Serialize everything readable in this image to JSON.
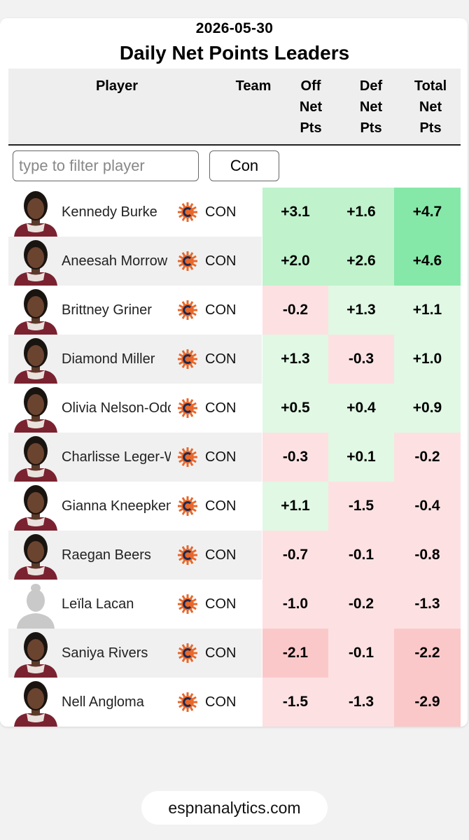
{
  "header": {
    "date": "2026-05-30",
    "title": "Daily Net Points Leaders"
  },
  "columns": {
    "player": "Player",
    "team": "Team",
    "off": "Off\nNet\nPts",
    "def": "Def\nNet\nPts",
    "total": "Total\nNet\nPts"
  },
  "filter": {
    "placeholder": "type to filter player",
    "team_value": "Con"
  },
  "colors": {
    "row_alt": "#f0f0f0",
    "green_light": "#e0f8e4",
    "green_mid": "#c0f2cc",
    "green_strong": "#86e8a8",
    "red_light": "#fde1e2",
    "red_mid": "#fbc8c9",
    "team_logo_orange": "#e8672a",
    "team_logo_navy": "#1c2a52"
  },
  "rows": [
    {
      "player": "Kennedy Burke",
      "team": "CON",
      "team_icon": "sun-logo-icon",
      "has_photo": true,
      "off": "+3.1",
      "def": "+1.6",
      "total": "+4.7"
    },
    {
      "player": "Aneesah Morrow",
      "team": "CON",
      "team_icon": "sun-logo-icon",
      "has_photo": true,
      "off": "+2.0",
      "def": "+2.6",
      "total": "+4.6"
    },
    {
      "player": "Brittney Griner",
      "team": "CON",
      "team_icon": "sun-logo-icon",
      "has_photo": true,
      "off": "-0.2",
      "def": "+1.3",
      "total": "+1.1"
    },
    {
      "player": "Diamond Miller",
      "team": "CON",
      "team_icon": "sun-logo-icon",
      "has_photo": true,
      "off": "+1.3",
      "def": "-0.3",
      "total": "+1.0"
    },
    {
      "player": "Olivia Nelson-Odo",
      "team": "CON",
      "team_icon": "sun-logo-icon",
      "has_photo": true,
      "off": "+0.5",
      "def": "+0.4",
      "total": "+0.9"
    },
    {
      "player": "Charlisse Leger-Walker",
      "team": "CON",
      "team_icon": "sun-logo-icon",
      "has_photo": true,
      "off": "-0.3",
      "def": "+0.1",
      "total": "-0.2"
    },
    {
      "player": "Gianna Kneepkens",
      "team": "CON",
      "team_icon": "sun-logo-icon",
      "has_photo": true,
      "off": "+1.1",
      "def": "-1.5",
      "total": "-0.4"
    },
    {
      "player": "Raegan Beers",
      "team": "CON",
      "team_icon": "sun-logo-icon",
      "has_photo": true,
      "off": "-0.7",
      "def": "-0.1",
      "total": "-0.8"
    },
    {
      "player": "Leïla Lacan",
      "team": "CON",
      "team_icon": "sun-logo-icon",
      "has_photo": false,
      "off": "-1.0",
      "def": "-0.2",
      "total": "-1.3"
    },
    {
      "player": "Saniya Rivers",
      "team": "CON",
      "team_icon": "sun-logo-icon",
      "has_photo": true,
      "off": "-2.1",
      "def": "-0.1",
      "total": "-2.2"
    },
    {
      "player": "Nell Angloma",
      "team": "CON",
      "team_icon": "sun-logo-icon",
      "has_photo": true,
      "off": "-1.5",
      "def": "-1.3",
      "total": "-2.9"
    }
  ],
  "footer": {
    "site": "espnanalytics.com"
  }
}
